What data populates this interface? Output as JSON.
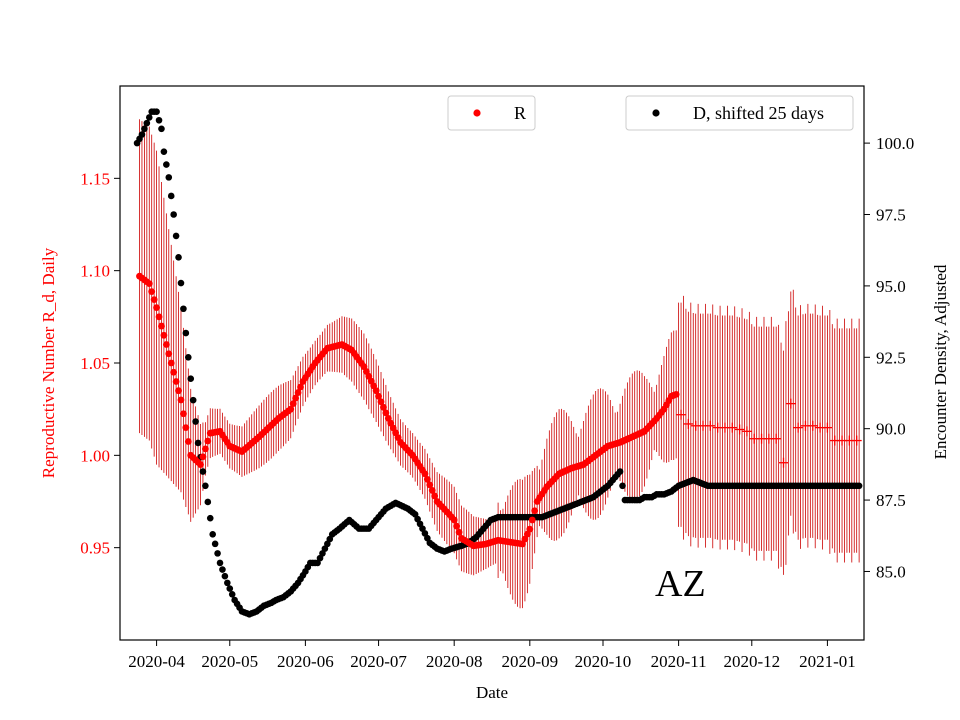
{
  "chart_data": {
    "type": "scatter",
    "annotation": "AZ",
    "xlabel": "Date",
    "ylabel_left": "Reproductive Number R_d, Daily",
    "ylabel_right": "Encounter Density, Adjusted",
    "x_ticks": [
      "2020-04",
      "2020-05",
      "2020-06",
      "2020-07",
      "2020-08",
      "2020-09",
      "2020-10",
      "2020-11",
      "2020-12",
      "2021-01"
    ],
    "y_left_ticks": [
      "0.95",
      "1.00",
      "1.05",
      "1.10",
      "1.15"
    ],
    "y_right_ticks": [
      "85.0",
      "87.5",
      "90.0",
      "92.5",
      "95.0",
      "97.5",
      "100.0"
    ],
    "ylim_left": [
      0.9,
      1.2
    ],
    "ylim_right": [
      82.6,
      102
    ],
    "xlim_days": [
      -15,
      290
    ],
    "x_origin": "2020-04-01",
    "colors": {
      "R": "#ff0000",
      "D": "#000000",
      "errorbar": "#cc0000"
    },
    "series": [
      {
        "name": "R",
        "axis": "left",
        "points_days_value": [
          [
            -7,
            1.097
          ],
          [
            -3,
            1.093
          ],
          [
            0,
            1.08
          ],
          [
            5,
            1.055
          ],
          [
            10,
            1.03
          ],
          [
            14,
            1.0
          ],
          [
            18,
            0.995
          ],
          [
            22,
            1.012
          ],
          [
            26,
            1.013
          ],
          [
            30,
            1.005
          ],
          [
            35,
            1.002
          ],
          [
            42,
            1.01
          ],
          [
            50,
            1.02
          ],
          [
            55,
            1.025
          ],
          [
            60,
            1.04
          ],
          [
            65,
            1.05
          ],
          [
            70,
            1.058
          ],
          [
            76,
            1.06
          ],
          [
            80,
            1.057
          ],
          [
            85,
            1.048
          ],
          [
            90,
            1.035
          ],
          [
            95,
            1.02
          ],
          [
            100,
            1.007
          ],
          [
            105,
            1.0
          ],
          [
            110,
            0.99
          ],
          [
            115,
            0.975
          ],
          [
            120,
            0.968
          ],
          [
            122,
            0.965
          ],
          [
            125,
            0.955
          ],
          [
            130,
            0.951
          ],
          [
            135,
            0.952
          ],
          [
            140,
            0.954
          ],
          [
            145,
            0.953
          ],
          [
            150,
            0.952
          ],
          [
            153,
            0.96
          ],
          [
            156,
            0.975
          ],
          [
            160,
            0.983
          ],
          [
            165,
            0.99
          ],
          [
            170,
            0.993
          ],
          [
            175,
            0.995
          ],
          [
            180,
            1.0
          ],
          [
            185,
            1.005
          ],
          [
            190,
            1.007
          ],
          [
            195,
            1.01
          ],
          [
            200,
            1.013
          ],
          [
            205,
            1.02
          ],
          [
            208,
            1.025
          ],
          [
            211,
            1.032
          ],
          [
            213,
            1.033
          ]
        ],
        "sparse_points_days_value": [
          [
            215,
            1.022
          ],
          [
            218,
            1.017
          ],
          [
            221,
            1.016
          ],
          [
            224,
            1.016
          ],
          [
            227,
            1.016
          ],
          [
            230,
            1.015
          ],
          [
            233,
            1.015
          ],
          [
            236,
            1.015
          ],
          [
            239,
            1.014
          ],
          [
            242,
            1.013
          ],
          [
            245,
            1.009
          ],
          [
            248,
            1.009
          ],
          [
            251,
            1.009
          ],
          [
            254,
            1.009
          ],
          [
            257,
            0.996
          ],
          [
            260,
            1.028
          ],
          [
            263,
            1.015
          ],
          [
            266,
            1.016
          ],
          [
            269,
            1.016
          ],
          [
            272,
            1.015
          ],
          [
            275,
            1.015
          ],
          [
            278,
            1.008
          ],
          [
            281,
            1.008
          ],
          [
            284,
            1.008
          ],
          [
            287,
            1.008
          ]
        ],
        "error_halfwidth_early": 0.085,
        "error_halfwidth_mid": 0.015,
        "error_halfwidth_late": 0.066
      },
      {
        "name": "D, shifted 25 days",
        "axis": "right",
        "points_days_value": [
          [
            -8,
            100.0
          ],
          [
            -6,
            100.3
          ],
          [
            -4,
            100.7
          ],
          [
            -2,
            101.1
          ],
          [
            0,
            101.1
          ],
          [
            2,
            100.5
          ],
          [
            3,
            99.7
          ],
          [
            5,
            98.8
          ],
          [
            7,
            97.5
          ],
          [
            9,
            96.0
          ],
          [
            11,
            94.2
          ],
          [
            13,
            92.5
          ],
          [
            15,
            91.0
          ],
          [
            17,
            89.5
          ],
          [
            20,
            88.0
          ],
          [
            23,
            86.3
          ],
          [
            26,
            85.3
          ],
          [
            29,
            84.6
          ],
          [
            32,
            84.0
          ],
          [
            35,
            83.6
          ],
          [
            38,
            83.5
          ],
          [
            41,
            83.6
          ],
          [
            44,
            83.8
          ],
          [
            47,
            83.9
          ],
          [
            49,
            84.0
          ],
          [
            52,
            84.1
          ],
          [
            55,
            84.3
          ],
          [
            58,
            84.6
          ],
          [
            61,
            85.0
          ],
          [
            63,
            85.3
          ],
          [
            66,
            85.3
          ],
          [
            69,
            85.8
          ],
          [
            72,
            86.3
          ],
          [
            75,
            86.5
          ],
          [
            79,
            86.8
          ],
          [
            83,
            86.5
          ],
          [
            87,
            86.5
          ],
          [
            90,
            86.8
          ],
          [
            94,
            87.2
          ],
          [
            98,
            87.4
          ],
          [
            103,
            87.2
          ],
          [
            106,
            87.0
          ],
          [
            109,
            86.5
          ],
          [
            112,
            86.0
          ],
          [
            115,
            85.8
          ],
          [
            118,
            85.7
          ],
          [
            121,
            85.8
          ],
          [
            125,
            85.9
          ],
          [
            128,
            86.0
          ],
          [
            131,
            86.2
          ],
          [
            134,
            86.5
          ],
          [
            137,
            86.8
          ],
          [
            140,
            86.9
          ],
          [
            143,
            86.9
          ],
          [
            146,
            86.9
          ],
          [
            149,
            86.9
          ],
          [
            152,
            86.9
          ],
          [
            155,
            86.9
          ],
          [
            158,
            86.9
          ],
          [
            161,
            87.0
          ],
          [
            164,
            87.1
          ],
          [
            167,
            87.2
          ],
          [
            170,
            87.3
          ],
          [
            173,
            87.4
          ],
          [
            176,
            87.5
          ],
          [
            179,
            87.6
          ],
          [
            182,
            87.8
          ],
          [
            185,
            88.0
          ],
          [
            188,
            88.3
          ],
          [
            190,
            88.5
          ],
          [
            192,
            87.5
          ],
          [
            194,
            87.5
          ],
          [
            196,
            87.5
          ],
          [
            198,
            87.5
          ],
          [
            200,
            87.6
          ],
          [
            203,
            87.6
          ],
          [
            205,
            87.7
          ],
          [
            208,
            87.7
          ],
          [
            211,
            87.8
          ],
          [
            214,
            88.0
          ],
          [
            217,
            88.1
          ],
          [
            220,
            88.2
          ],
          [
            223,
            88.1
          ],
          [
            226,
            88.0
          ],
          [
            229,
            88.0
          ],
          [
            232,
            88.0
          ],
          [
            235,
            88.0
          ],
          [
            238,
            88.0
          ],
          [
            241,
            88.0
          ],
          [
            244,
            88.0
          ],
          [
            247,
            88.0
          ],
          [
            250,
            88.0
          ],
          [
            253,
            88.0
          ],
          [
            256,
            88.0
          ],
          [
            259,
            88.0
          ],
          [
            262,
            88.0
          ],
          [
            265,
            88.0
          ],
          [
            268,
            88.0
          ],
          [
            271,
            88.0
          ],
          [
            274,
            88.0
          ],
          [
            277,
            88.0
          ],
          [
            280,
            88.0
          ],
          [
            283,
            88.0
          ],
          [
            286,
            88.0
          ],
          [
            288,
            88.0
          ]
        ]
      }
    ],
    "legend": {
      "left": "R",
      "right": "D, shifted 25 days"
    }
  }
}
